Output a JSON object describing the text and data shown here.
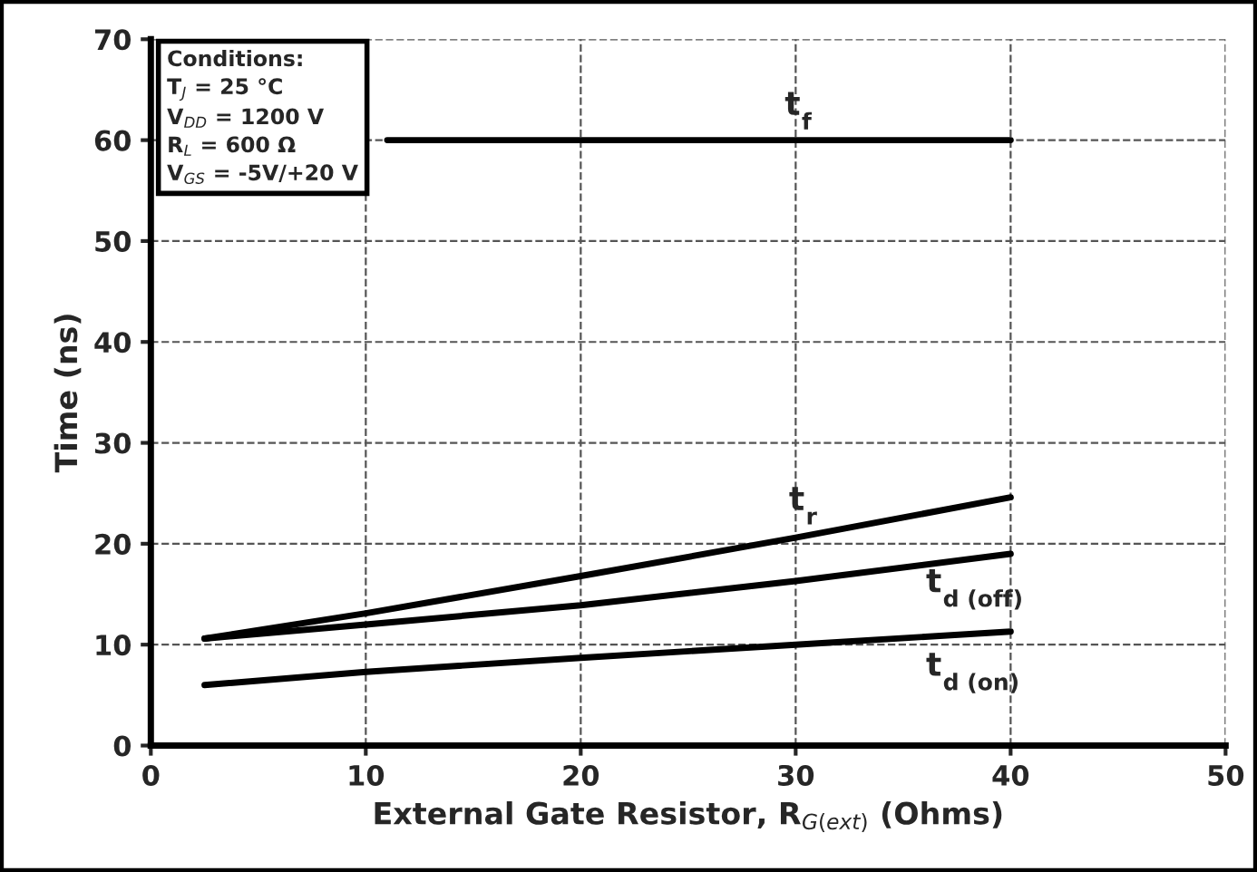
{
  "chart_data": {
    "type": "line",
    "xlabel": "External Gate Resistor, R$_{G(ext)}$ (Ohms)",
    "ylabel": "Time (ns)",
    "xlim": [
      0,
      50
    ],
    "xticks": [
      0,
      10,
      20,
      30,
      40,
      50
    ],
    "ylim": [
      0,
      70
    ],
    "yticks": [
      0,
      10,
      20,
      30,
      40,
      50,
      60,
      70
    ],
    "grid": true,
    "line_style": "solid",
    "marker": "none",
    "series": [
      {
        "name": "t$_{f}$",
        "color": "#000000",
        "x": [
          11,
          40
        ],
        "values": [
          60,
          60
        ]
      },
      {
        "name": "t$_{r}$",
        "color": "#000000",
        "x": [
          2.5,
          10,
          20,
          30,
          40
        ],
        "values": [
          10.6,
          13.1,
          16.8,
          20.6,
          24.6
        ]
      },
      {
        "name": "t$_{d (off)}$",
        "color": "#000000",
        "x": [
          2.5,
          10,
          20,
          30,
          40
        ],
        "values": [
          10.6,
          12.0,
          13.9,
          16.3,
          19.0
        ]
      },
      {
        "name": "t$_{d (on)}$",
        "color": "#000000",
        "x": [
          2.5,
          10,
          20,
          30,
          40
        ],
        "values": [
          6.0,
          7.3,
          8.7,
          10.0,
          11.3
        ]
      }
    ],
    "annotations": [
      "Conditions:",
      "T$_{J}$ = 25 °C",
      "V$_{DD}$ = 1200 V",
      "R$_{L}$ = 600 Ω",
      "V$_{GS}$ = -5V/+20 V"
    ]
  }
}
